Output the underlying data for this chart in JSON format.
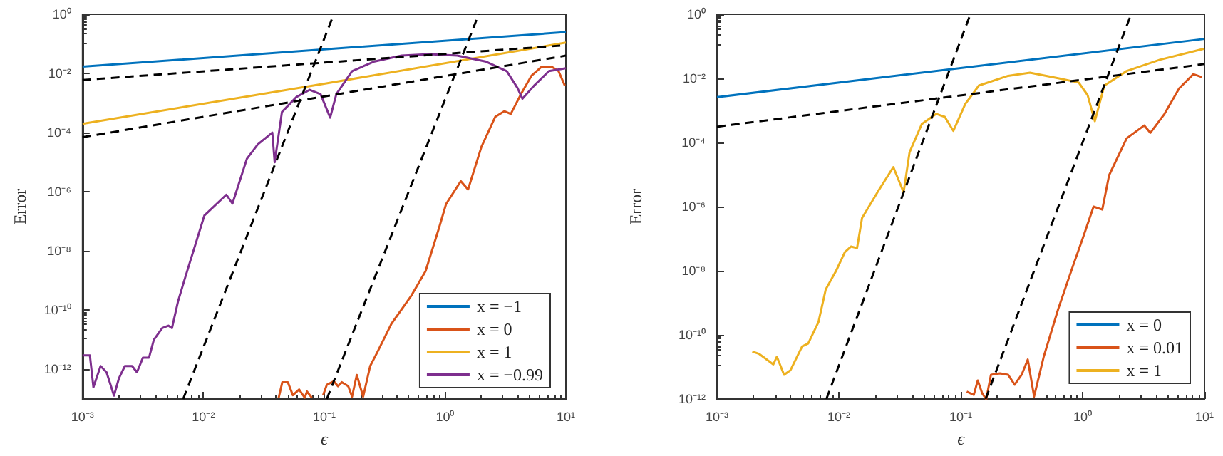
{
  "chart_data": [
    {
      "type": "line",
      "xlabel": "ϵ",
      "ylabel": "Error",
      "log": "xy",
      "legend": "bottom right",
      "marker": "none",
      "line_style": "solid",
      "xlim": [
        0.001,
        10
      ],
      "xticks": [
        {
          "value": 0.001,
          "label": "10⁻³"
        },
        {
          "value": 0.01,
          "label": "10⁻²"
        },
        {
          "value": 0.1,
          "label": "10⁻¹"
        },
        {
          "value": 1,
          "label": "10⁰"
        },
        {
          "value": 10,
          "label": "10¹"
        }
      ],
      "ylim": [
        1e-13,
        1
      ],
      "yticks": [
        {
          "value": 1e-12,
          "label": "10⁻¹²"
        },
        {
          "value": 1e-10,
          "label": "10⁻¹⁰"
        },
        {
          "value": 1e-08,
          "label": "10⁻⁸"
        },
        {
          "value": 1e-06,
          "label": "10⁻⁶"
        },
        {
          "value": 0.0001,
          "label": "10⁻⁴"
        },
        {
          "value": 0.01,
          "label": "10⁻²"
        },
        {
          "value": 1,
          "label": "10⁰"
        }
      ],
      "series": [
        {
          "name": "x = −1",
          "color": "#0072bd",
          "x": [
            0.001,
            0.1,
            10
          ],
          "values": [
            0.017,
            0.065,
            0.25
          ]
        },
        {
          "name": "x = 0",
          "color": "#d95319",
          "x": [
            0.042,
            0.045,
            0.05,
            0.055,
            0.062,
            0.069,
            0.072,
            0.079,
            0.087,
            0.098,
            0.105,
            0.12,
            0.13,
            0.14,
            0.158,
            0.17,
            0.186,
            0.21,
            0.24,
            0.275,
            0.36,
            0.52,
            0.69,
            0.89,
            1.02,
            1.35,
            1.55,
            2.0,
            2.6,
            3.1,
            3.5,
            4.3,
            5.2,
            6.3,
            7.6,
            8.7,
            9.8
          ],
          "values": [
            1.1e-13,
            3.7e-13,
            3.7e-13,
            1.35e-13,
            2.1e-13,
            1.1e-13,
            1.8e-13,
            1.1e-13,
            null,
            1.35e-13,
            3e-13,
            4e-13,
            2.7e-13,
            3.7e-13,
            2.7e-13,
            1.2e-13,
            6.5e-13,
            1.2e-13,
            1.3e-12,
            3.8e-12,
            3.5e-11,
            2.9e-10,
            2.1e-09,
            5.9e-08,
            3.9e-07,
            2.3e-06,
            1.2e-06,
            3.3e-05,
            0.00034,
            0.00053,
            0.00043,
            0.0022,
            0.0085,
            0.017,
            0.017,
            0.012,
            0.0039
          ]
        },
        {
          "name": "x = 1",
          "color": "#edb120",
          "x": [
            0.001,
            0.1,
            10
          ],
          "values": [
            0.0002,
            0.0045,
            0.11
          ]
        },
        {
          "name": "x = −0.99",
          "color": "#7e2f8e",
          "x": [
            0.001,
            0.00115,
            0.00123,
            0.00141,
            0.00158,
            0.00182,
            0.002,
            0.00224,
            0.00257,
            0.00282,
            0.00316,
            0.00355,
            0.00389,
            0.00457,
            0.00513,
            0.0055,
            0.00617,
            0.00708,
            0.0102,
            0.0155,
            0.0174,
            0.0229,
            0.0282,
            0.0372,
            0.0389,
            0.0447,
            0.0589,
            0.0759,
            0.0933,
            0.112,
            0.126,
            0.17,
            0.257,
            0.437,
            0.741,
            1.26,
            2.19,
            3.24,
            3.98,
            4.37,
            5.5,
            7.24,
            10
          ],
          "values": [
            3e-12,
            3e-12,
            2.5e-13,
            1.3e-12,
            8e-13,
            1.3e-13,
            5e-13,
            1.3e-12,
            1.3e-12,
            8e-13,
            2.5e-12,
            2.5e-12,
            1e-11,
            2.5e-11,
            3e-11,
            2.5e-11,
            2e-10,
            1.3e-09,
            1.6e-07,
            8e-07,
            4e-07,
            1.3e-05,
            4e-05,
            0.0001,
            1e-05,
            0.0005,
            0.0016,
            0.0028,
            0.002,
            0.00032,
            0.002,
            0.012,
            0.025,
            0.04,
            0.045,
            0.04,
            0.025,
            0.012,
            0.0032,
            0.0014,
            0.004,
            0.012,
            0.015
          ]
        },
        {
          "color": "#000000",
          "line_style": "dashed",
          "x": [
            0.001,
            10
          ],
          "values": [
            0.006,
            0.09
          ]
        },
        {
          "color": "#000000",
          "line_style": "dashed",
          "x": [
            0.001,
            10
          ],
          "values": [
            7e-05,
            0.04
          ]
        },
        {
          "color": "#000000",
          "line_style": "dashed",
          "x": [
            0.0068,
            0.12
          ],
          "values": [
            1e-13,
            1
          ]
        },
        {
          "color": "#000000",
          "line_style": "dashed",
          "x": [
            0.105,
            1.9
          ],
          "values": [
            1e-13,
            1
          ]
        }
      ]
    },
    {
      "type": "line",
      "xlabel": "ϵ",
      "ylabel": "Error",
      "log": "xy",
      "legend": "bottom right",
      "marker": "none",
      "line_style": "solid",
      "xlim": [
        0.001,
        10
      ],
      "xticks": [
        {
          "value": 0.001,
          "label": "10⁻³"
        },
        {
          "value": 0.01,
          "label": "10⁻²"
        },
        {
          "value": 0.1,
          "label": "10⁻¹"
        },
        {
          "value": 1,
          "label": "10⁰"
        },
        {
          "value": 10,
          "label": "10¹"
        }
      ],
      "ylim": [
        1e-12,
        1
      ],
      "yticks": [
        {
          "value": 1e-12,
          "label": "10⁻¹²"
        },
        {
          "value": 1e-10,
          "label": "10⁻¹⁰"
        },
        {
          "value": 1e-08,
          "label": "10⁻⁸"
        },
        {
          "value": 1e-06,
          "label": "10⁻⁶"
        },
        {
          "value": 0.0001,
          "label": "10⁻⁴"
        },
        {
          "value": 0.01,
          "label": "10⁻²"
        },
        {
          "value": 1,
          "label": "10⁰"
        }
      ],
      "series": [
        {
          "name": "x = 0",
          "color": "#0072bd",
          "x": [
            0.001,
            0.1,
            10
          ],
          "values": [
            0.0026,
            0.021,
            0.17
          ]
        },
        {
          "name": "x = 0.01",
          "color": "#d95319",
          "x": [
            0.112,
            0.128,
            0.138,
            0.15,
            0.162,
            0.177,
            0.21,
            0.245,
            0.277,
            0.316,
            0.355,
            0.4,
            0.48,
            0.63,
            0.83,
            1.0,
            1.23,
            1.45,
            1.65,
            2.3,
            3.2,
            3.6,
            4.7,
            6.2,
            8.1,
            9.5
          ],
          "values": [
            1.7e-12,
            1.35e-12,
            3.8e-12,
            1.5e-12,
            1e-12,
            5.7e-12,
            6.3e-12,
            5.7e-12,
            2.8e-12,
            5.7e-12,
            1.7e-11,
            1.2e-12,
            2.1e-11,
            6.3e-10,
            1.35e-08,
            1e-07,
            1e-06,
            8.1e-07,
            9.5e-06,
            0.000135,
            0.00034,
            0.0002,
            0.00078,
            0.0049,
            0.0135,
            0.011
          ]
        },
        {
          "name": "x = 1",
          "color": "#edb120",
          "x": [
            0.00195,
            0.0022,
            0.0029,
            0.0031,
            0.00355,
            0.004,
            0.005,
            0.0056,
            0.0068,
            0.0078,
            0.0095,
            0.0112,
            0.0126,
            0.0141,
            0.0155,
            0.0214,
            0.028,
            0.034,
            0.038,
            0.048,
            0.063,
            0.074,
            0.087,
            0.109,
            0.141,
            0.245,
            0.37,
            0.64,
            0.93,
            1.1,
            1.26,
            1.51,
            2.3,
            4.3,
            10
          ],
          "values": [
            3e-11,
            2.6e-11,
            1.2e-11,
            2.1e-11,
            5.7e-12,
            7.8e-12,
            4.4e-11,
            5.4e-11,
            2.5e-10,
            2.6e-09,
            1e-08,
            3.8e-08,
            5.7e-08,
            5.1e-08,
            4.4e-07,
            3.4e-06,
            1.7e-05,
            2.8e-06,
            4.9e-05,
            0.00038,
            0.00078,
            0.00063,
            0.00023,
            0.0016,
            0.006,
            0.012,
            0.015,
            0.01,
            0.0074,
            0.003,
            0.00046,
            0.006,
            0.017,
            0.038,
            0.085
          ]
        },
        {
          "color": "#000000",
          "line_style": "dashed",
          "x": [
            0.001,
            10
          ],
          "values": [
            0.00031,
            0.028
          ]
        },
        {
          "color": "#000000",
          "line_style": "dashed",
          "x": [
            0.0079,
            0.12
          ],
          "values": [
            1e-12,
            1
          ]
        },
        {
          "color": "#000000",
          "line_style": "dashed",
          "x": [
            0.16,
            2.5
          ],
          "values": [
            1e-12,
            1
          ]
        }
      ]
    }
  ]
}
